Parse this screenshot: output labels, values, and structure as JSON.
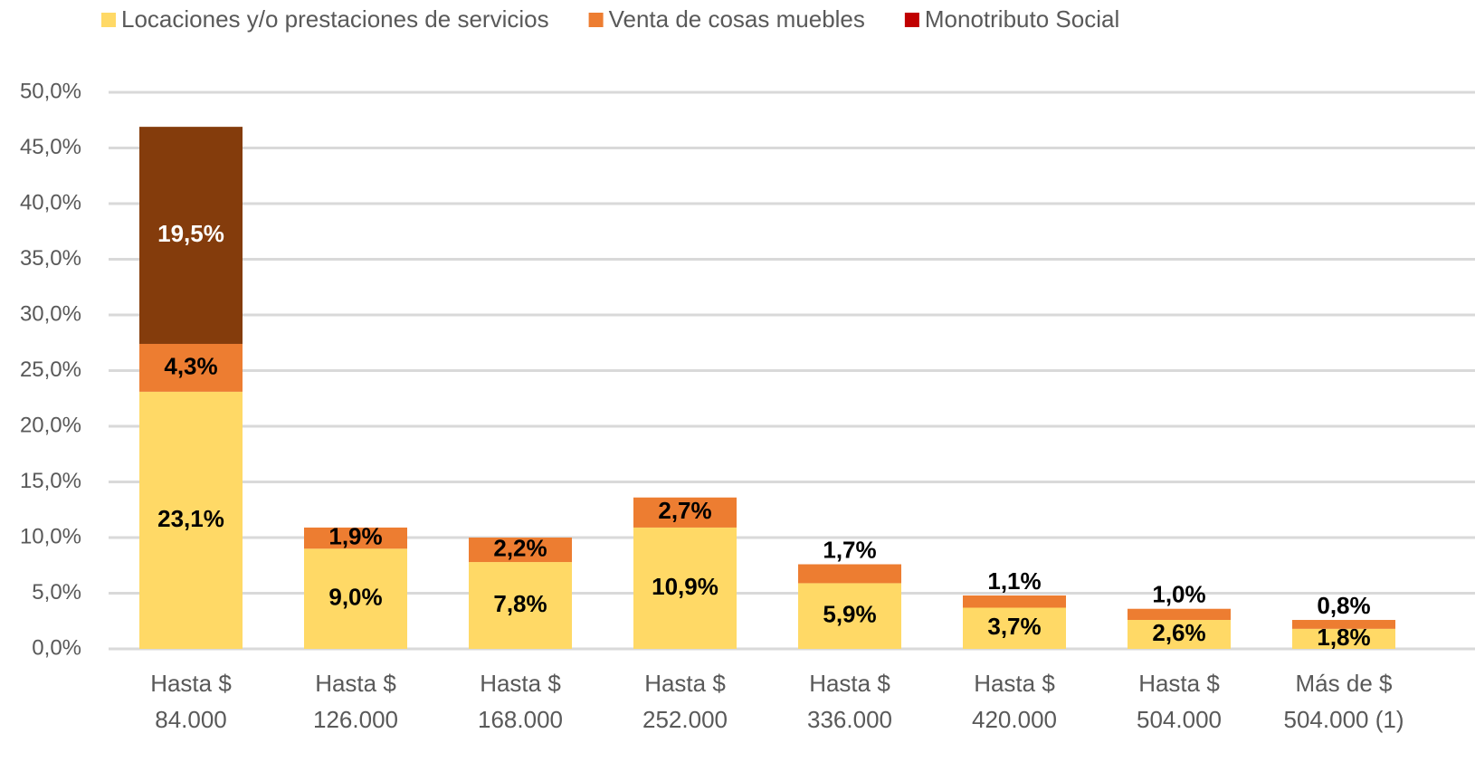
{
  "chart_data": {
    "type": "stacked_bar",
    "categories": [
      "Hasta $ 84.000",
      "Hasta $ 126.000",
      "Hasta $ 168.000",
      "Hasta $ 252.000",
      "Hasta $ 336.000",
      "Hasta $ 420.000",
      "Hasta $ 504.000",
      "Más de $ 504.000 (1)"
    ],
    "series": [
      {
        "name": "Locaciones y/o prestaciones de servicios",
        "color": "#ffd966",
        "values": [
          23.1,
          9.0,
          7.8,
          10.9,
          5.9,
          3.7,
          2.6,
          1.8
        ],
        "value_labels": [
          "23,1%",
          "9,0%",
          "7,8%",
          "10,9%",
          "5,9%",
          "3,7%",
          "2,6%",
          "1,8%"
        ]
      },
      {
        "name": "Venta de cosas muebles",
        "color": "#ed7d31",
        "values": [
          4.3,
          1.9,
          2.2,
          2.7,
          1.7,
          1.1,
          1.0,
          0.8
        ],
        "value_labels": [
          "4,3%",
          "1,9%",
          "2,2%",
          "2,7%",
          "1,7%",
          "1,1%",
          "1,0%",
          "0,8%"
        ]
      },
      {
        "name": "Monotributo Social",
        "color": "#843c0c",
        "legend_color": "#c00000",
        "values": [
          19.5,
          null,
          null,
          null,
          null,
          null,
          null,
          null
        ],
        "value_labels": [
          "19,5%",
          null,
          null,
          null,
          null,
          null,
          null,
          null
        ]
      }
    ],
    "ylim": [
      0,
      50
    ],
    "yticks": [
      {
        "value": 0,
        "label": "0,0%"
      },
      {
        "value": 5,
        "label": "5,0%"
      },
      {
        "value": 10,
        "label": "10,0%"
      },
      {
        "value": 15,
        "label": "15,0%"
      },
      {
        "value": 20,
        "label": "20,0%"
      },
      {
        "value": 25,
        "label": "25,0%"
      },
      {
        "value": 30,
        "label": "30,0%"
      },
      {
        "value": 35,
        "label": "35,0%"
      },
      {
        "value": 40,
        "label": "40,0%"
      },
      {
        "value": 45,
        "label": "45,0%"
      },
      {
        "value": 50,
        "label": "50,0%"
      }
    ],
    "grid": true,
    "legend": "top"
  }
}
